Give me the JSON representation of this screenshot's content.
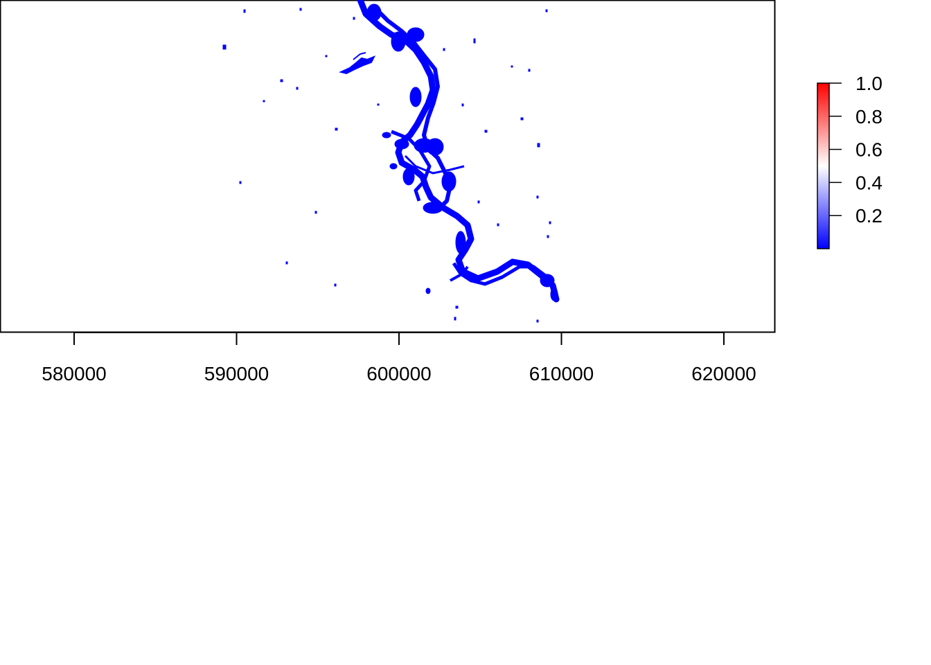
{
  "map": {
    "x_axis": {
      "ticks": [
        580000,
        590000,
        600000,
        610000,
        620000
      ],
      "labels": [
        "580000",
        "590000",
        "600000",
        "610000",
        "620000"
      ],
      "range": [
        575500,
        623000
      ]
    },
    "colors": {
      "water": "#0000ff",
      "frame": "#000000",
      "background": "#ffffff"
    }
  },
  "legend": {
    "range": [
      0.0,
      1.0
    ],
    "ticks": [
      "1.0",
      "0.8",
      "0.6",
      "0.4",
      "0.2"
    ],
    "gradient": [
      "#0000ff",
      "#ffffff",
      "#ff0000"
    ]
  }
}
